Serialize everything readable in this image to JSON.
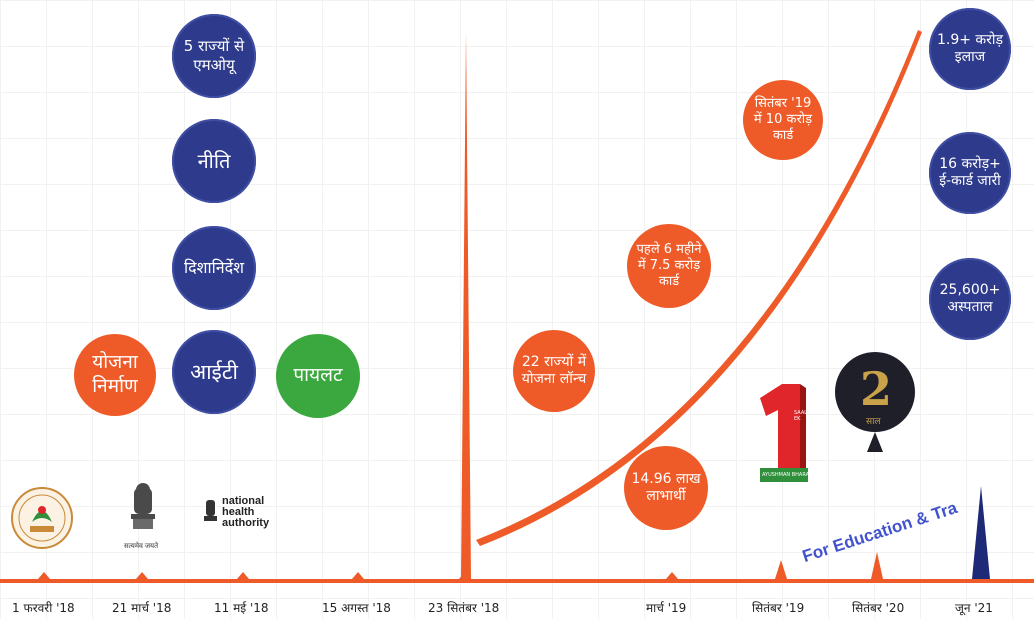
{
  "timeline": {
    "dates": [
      {
        "id": "d1",
        "label": "1 फरवरी '18"
      },
      {
        "id": "d2",
        "label": "21 मार्च '18"
      },
      {
        "id": "d3",
        "label": "11 मई '18"
      },
      {
        "id": "d4",
        "label": "15 अगस्त '18"
      },
      {
        "id": "d5",
        "label": "23 सितंबर '18"
      },
      {
        "id": "d6",
        "label": "मार्च '19"
      },
      {
        "id": "d7",
        "label": "सितंबर '19"
      },
      {
        "id": "d8",
        "label": "सितंबर '20"
      },
      {
        "id": "d9",
        "label": "जून '21"
      }
    ]
  },
  "milestones": {
    "yojana": "योजना निर्माण",
    "mou": "5 राज्यों से एमओयू",
    "niti": "नीति",
    "dishanirdesh": "दिशानिर्देश",
    "it": "आईटी",
    "pilot": "पायलट",
    "launch": "22 राज्यों में योजना लॉन्च",
    "first6": "पहले 6 महीने में 7.5 करोड़ कार्ड",
    "sep19": "सितंबर '19 में 10 करोड़ कार्ड",
    "beneficiaries": "14.96 लाख लाभार्थी",
    "treatment": "1.9+ करोड़ इलाज",
    "ecards": "16 करोड़+ ई-कार्ड जारी",
    "hospitals": "25,600+ अस्पताल"
  },
  "logos": {
    "pmjay": "Pradhan Mantri Jan Arogya Yojana PM-JAY",
    "emblem_caption": "सत्यमेव जयते",
    "nha": "national health authority",
    "saal1_number": "1",
    "saal1_text": "SAAL EK",
    "saal1_sub": "AYUSHMAN BHARAT",
    "saal2_number": "2",
    "saal2_text": "साल"
  },
  "watermark": "For Education & Tra",
  "colors": {
    "orange": "#ee5b28",
    "blue": "#2e3a8c",
    "green": "#3aa83e",
    "navy": "#1e2a78"
  }
}
